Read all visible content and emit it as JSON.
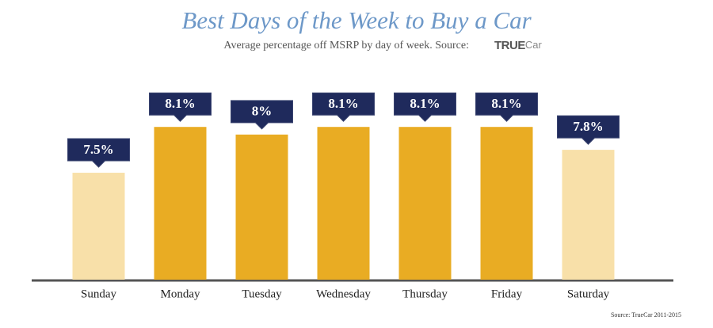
{
  "chart_data": {
    "type": "bar",
    "title": "Best Days of the Week to Buy a Car",
    "subtitle": "Average percentage off MSRP by day of week. Source:",
    "source_logo": {
      "strong": "TRUE",
      "light": "Car"
    },
    "source_note": "Source:  TrueCar 2011-2015",
    "categories": [
      "Sunday",
      "Monday",
      "Tuesday",
      "Wednesday",
      "Thursday",
      "Friday",
      "Saturday"
    ],
    "values": [
      7.5,
      8.1,
      8,
      8.1,
      8.1,
      8.1,
      7.8
    ],
    "value_labels": [
      "7.5%",
      "8.1%",
      "8%",
      "8.1%",
      "8.1%",
      "8.1%",
      "7.8%"
    ],
    "colors": [
      "#f8e0a9",
      "#e9ac23",
      "#e9ac23",
      "#e9ac23",
      "#e9ac23",
      "#e9ac23",
      "#f8e0a9"
    ],
    "label_color": "#1f2a5c",
    "ylim": [
      6.1,
      8.6
    ]
  }
}
